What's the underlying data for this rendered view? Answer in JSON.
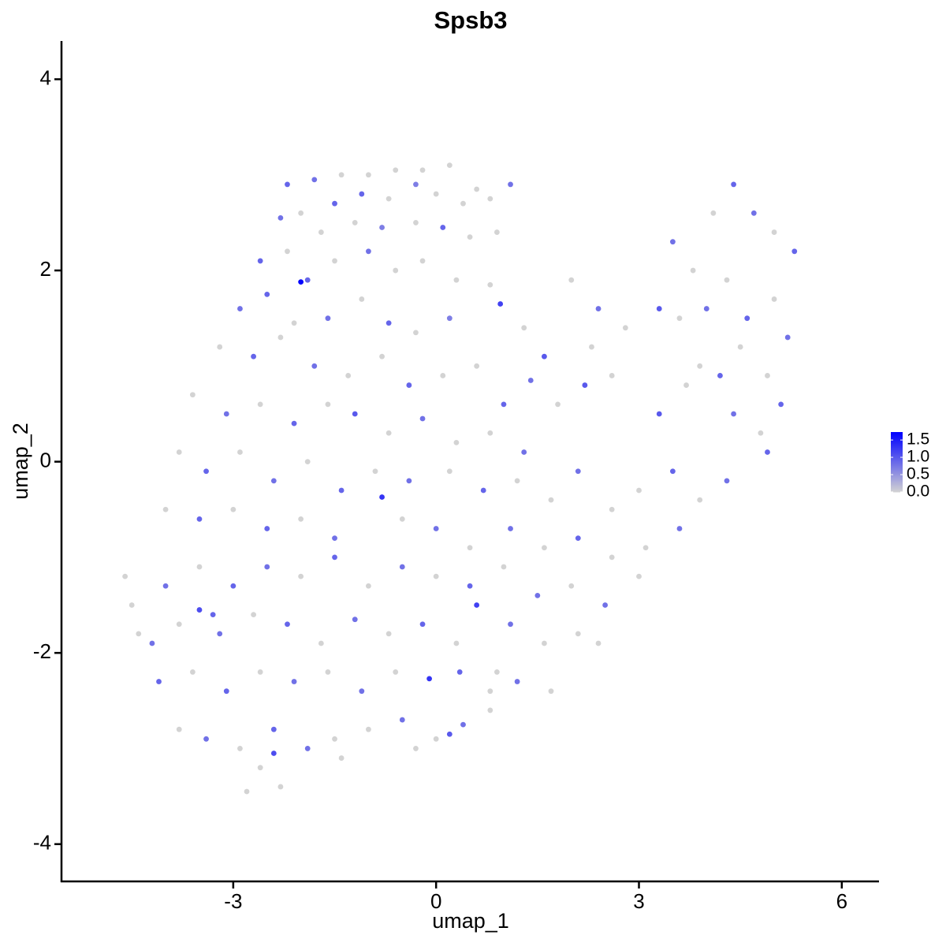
{
  "chart_data": {
    "type": "scatter",
    "title": "Spsb3",
    "xlabel": "umap_1",
    "ylabel": "umap_2",
    "xlim": [
      -5.54,
      6.55
    ],
    "ylim": [
      -4.39,
      4.4
    ],
    "xticks": [
      -3,
      0,
      3,
      6
    ],
    "yticks": [
      -4,
      -2,
      0,
      2,
      4
    ],
    "low_color": "#d3d3d3",
    "high_color": "#0000ff",
    "colorbar": {
      "lim": [
        0,
        1.73
      ],
      "ticks": [
        {
          "value": 0,
          "label": "0.0"
        },
        0.5,
        {
          "value": 1,
          "label": "1.0"
        },
        1.5
      ]
    },
    "x": [
      -2.2,
      -1.8,
      -1.4,
      -1.0,
      -0.6,
      -0.2,
      0.2,
      0.6,
      1.1,
      -2.0,
      -1.5,
      -1.1,
      -0.7,
      -0.3,
      0.0,
      0.4,
      0.8,
      -2.3,
      -1.7,
      -1.2,
      -0.8,
      -0.3,
      0.1,
      0.5,
      0.9,
      -2.6,
      -2.2,
      -1.9,
      -2.0,
      -1.5,
      -1.0,
      -0.6,
      -0.2,
      0.3,
      0.8,
      -2.9,
      -2.5,
      -2.1,
      -1.6,
      -1.1,
      -0.7,
      -0.3,
      0.2,
      0.95,
      1.3,
      1.6,
      2.0,
      2.4,
      2.8,
      3.3,
      3.5,
      3.8,
      4.1,
      4.4,
      4.7,
      5.0,
      5.3,
      3.6,
      4.0,
      4.3,
      4.6,
      5.0,
      5.2,
      3.9,
      4.2,
      4.5,
      4.9,
      5.1,
      3.3,
      3.7,
      4.4,
      4.8,
      4.9,
      2.6,
      2.2,
      1.8,
      1.4,
      1.0,
      0.6,
      2.3,
      -3.2,
      -2.7,
      -2.3,
      -1.8,
      -1.3,
      -0.8,
      -0.4,
      0.1,
      -3.6,
      -3.1,
      -2.6,
      -2.1,
      -1.6,
      -1.2,
      -0.7,
      -0.2,
      0.3,
      0.8,
      1.3,
      -3.8,
      -3.4,
      -2.9,
      -2.4,
      -1.9,
      -1.4,
      -0.9,
      -0.4,
      0.2,
      0.7,
      1.2,
      1.7,
      2.1,
      2.6,
      3.0,
      3.5,
      3.9,
      4.3,
      -4.0,
      -3.5,
      -3.0,
      -2.5,
      -2.0,
      -1.5,
      -0.8,
      -0.5,
      0.0,
      0.5,
      1.1,
      1.6,
      2.1,
      2.6,
      3.1,
      3.6,
      -4.6,
      -4.5,
      -4.0,
      -3.5,
      -3.0,
      -2.5,
      -2.0,
      -1.5,
      -1.0,
      -0.5,
      0.0,
      0.5,
      1.0,
      1.5,
      2.0,
      2.5,
      3.0,
      -4.2,
      -3.8,
      -3.5,
      -3.2,
      -2.7,
      -2.2,
      -1.7,
      -1.2,
      -0.7,
      -0.2,
      0.3,
      0.6,
      1.1,
      1.6,
      2.1,
      -4.1,
      -3.6,
      -3.1,
      -2.6,
      -2.1,
      -1.6,
      -1.1,
      -0.6,
      -0.1,
      0.35,
      0.8,
      1.2,
      -3.8,
      -3.4,
      -2.9,
      -2.4,
      -1.9,
      -1.5,
      -1.0,
      -0.5,
      0.0,
      0.4,
      0.8,
      -2.6,
      -2.8,
      -2.3,
      -1.4,
      -0.3,
      0.2,
      -2.4,
      -3.3,
      -4.4,
      0.9,
      1.7,
      2.4
    ],
    "values": [
      2.9,
      2.95,
      3.0,
      3.0,
      3.05,
      3.05,
      3.1,
      2.85,
      2.9,
      2.6,
      2.7,
      2.8,
      2.75,
      2.9,
      2.8,
      2.7,
      2.75,
      2.55,
      2.4,
      2.5,
      2.45,
      2.5,
      2.45,
      2.35,
      2.4,
      2.1,
      2.2,
      1.9,
      1.88,
      2.1,
      2.2,
      2.0,
      2.1,
      1.9,
      1.85,
      1.6,
      1.75,
      1.45,
      1.5,
      1.7,
      1.45,
      1.35,
      1.5,
      1.65,
      1.4,
      1.1,
      1.9,
      1.6,
      1.4,
      1.6,
      2.3,
      2.0,
      2.6,
      2.9,
      2.6,
      2.4,
      2.2,
      1.5,
      1.6,
      1.9,
      1.5,
      1.7,
      1.3,
      1.0,
      0.9,
      1.2,
      0.9,
      0.6,
      0.5,
      0.8,
      0.5,
      0.3,
      0.1,
      0.9,
      0.8,
      0.6,
      0.85,
      0.6,
      1.0,
      1.2,
      1.2,
      1.1,
      1.3,
      1.0,
      0.9,
      1.1,
      0.8,
      0.9,
      0.7,
      0.5,
      0.6,
      0.4,
      0.6,
      0.5,
      0.3,
      0.45,
      0.2,
      0.3,
      0.1,
      0.1,
      -0.1,
      0.1,
      -0.2,
      0.0,
      -0.3,
      -0.1,
      -0.2,
      -0.1,
      -0.3,
      -0.2,
      -0.4,
      -0.1,
      -0.5,
      -0.3,
      -0.1,
      -0.4,
      -0.2,
      -0.5,
      -0.6,
      -0.5,
      -0.7,
      -0.6,
      -0.8,
      -0.37,
      -0.6,
      -0.7,
      -0.9,
      -0.7,
      -0.9,
      -0.8,
      -1.0,
      -0.9,
      -0.7,
      -1.2,
      -1.5,
      -1.3,
      -1.1,
      -1.3,
      -1.1,
      -1.2,
      -1.0,
      -1.3,
      -1.1,
      -1.2,
      -1.3,
      -1.1,
      -1.4,
      -1.3,
      -1.5,
      -1.2,
      -1.9,
      -1.7,
      -1.55,
      -1.8,
      -1.6,
      -1.7,
      -1.9,
      -1.65,
      -1.8,
      -1.7,
      -1.9,
      -1.5,
      -1.7,
      -1.9,
      -1.8,
      -2.3,
      -2.2,
      -2.4,
      -2.2,
      -2.3,
      -2.2,
      -2.4,
      -2.2,
      -2.27,
      -2.2,
      -2.4,
      -2.3,
      -2.8,
      -2.9,
      -3.0,
      -2.8,
      -3.0,
      -2.9,
      -2.8,
      -2.7,
      -2.9,
      -2.75,
      -2.6,
      -3.2,
      -3.45,
      -3.4,
      -3.1,
      -3.0,
      -2.85,
      -3.05,
      -1.6,
      -1.8,
      -2.2,
      -2.4,
      -1.9
    ],
    "expression": [
      0.9,
      0.8,
      0,
      0,
      0,
      0,
      0,
      0,
      0.8,
      0,
      0.9,
      0.9,
      0,
      0.7,
      0,
      0,
      0,
      0.8,
      0,
      0,
      0.7,
      0,
      0.9,
      0,
      0,
      0.9,
      0,
      0.9,
      1.7,
      0,
      0.8,
      0,
      0,
      0,
      0,
      0.8,
      0.9,
      0,
      0.8,
      0,
      0.9,
      0,
      0.7,
      1.2,
      0,
      1.0,
      0,
      0.8,
      0,
      1.0,
      0.8,
      0,
      0,
      0.9,
      0.8,
      0,
      0.9,
      0,
      0.8,
      0,
      0.9,
      0,
      0.8,
      0,
      0.9,
      0,
      0,
      0.9,
      1.0,
      0,
      0.8,
      0,
      0.9,
      0,
      1.0,
      0,
      0.8,
      0.9,
      0,
      0,
      0,
      0.9,
      0,
      0.8,
      0,
      0,
      0.9,
      0,
      0,
      0.8,
      0,
      0.9,
      0,
      1.0,
      0,
      0.8,
      0,
      0,
      0.8,
      0,
      0.9,
      0,
      0.8,
      0,
      0.9,
      0,
      0.8,
      0,
      0.9,
      0,
      0,
      0.8,
      0,
      0,
      0.9,
      0,
      0.8,
      0,
      0.9,
      0,
      0.9,
      0,
      0.8,
      1.3,
      0,
      0.8,
      0,
      0.8,
      0,
      0.9,
      0,
      0,
      0.8,
      0,
      0,
      0.8,
      0,
      0.9,
      0.8,
      0,
      0.9,
      0,
      0.8,
      0,
      0.9,
      0,
      0.8,
      0,
      0.8,
      0,
      0.8,
      0,
      1.1,
      0.8,
      0,
      0.9,
      0,
      0.8,
      0,
      0.9,
      0,
      1.2,
      0.8,
      0,
      0,
      0.9,
      0,
      0.9,
      0,
      0.8,
      0,
      0.8,
      0,
      1.3,
      0.9,
      0,
      0.8,
      0,
      0.8,
      0,
      0.9,
      0.8,
      0,
      0,
      0.8,
      0,
      0.8,
      0,
      0,
      0,
      0,
      0,
      0,
      1.0,
      1.1,
      0.9,
      0,
      0,
      0,
      0
    ]
  }
}
